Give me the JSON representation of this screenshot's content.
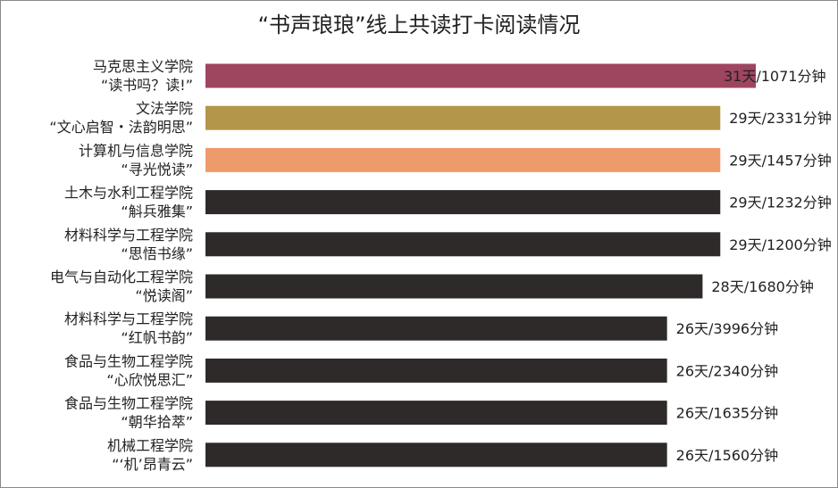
{
  "chart_data": {
    "type": "bar",
    "orientation": "horizontal",
    "title": "“书声琅琅”线上共读打卡阅读情况",
    "categories": [
      [
        "马克思主义学院",
        "“读书吗？读!”"
      ],
      [
        "文法学院",
        "“文心启智・法韵明思”"
      ],
      [
        "计算机与信息学院",
        "“寻光悦读”"
      ],
      [
        "土木与水利工程学院",
        "“斛兵雅集”"
      ],
      [
        "材料科学与工程学院",
        "“思悟书缘”"
      ],
      [
        "电气与自动化工程学院",
        "“悦读阁”"
      ],
      [
        "材料科学与工程学院",
        "“红帆书韵”"
      ],
      [
        "食品与生物工程学院",
        "“心欣悦思汇”"
      ],
      [
        "食品与生物工程学院",
        "“朝华拾萃”"
      ],
      [
        "机械工程学院",
        "“‘机’昂青云”"
      ]
    ],
    "values": [
      31,
      29,
      29,
      29,
      29,
      28,
      26,
      26,
      26,
      26
    ],
    "data_labels": [
      "31天/1071分钟",
      "29天/2331分钟",
      "29天/1457分钟",
      "29天/1232分钟",
      "29天/1200分钟",
      "28天/1680分钟",
      "26天/3996分钟",
      "26天/2340分钟",
      "26天/1635分钟",
      "26天/1560分钟"
    ],
    "colors": [
      "#9e4560",
      "#b4964a",
      "#ef9a6a",
      "#2e2a2a",
      "#2e2a2a",
      "#2e2a2a",
      "#2e2a2a",
      "#2e2a2a",
      "#2e2a2a",
      "#2e2a2a"
    ]
  }
}
